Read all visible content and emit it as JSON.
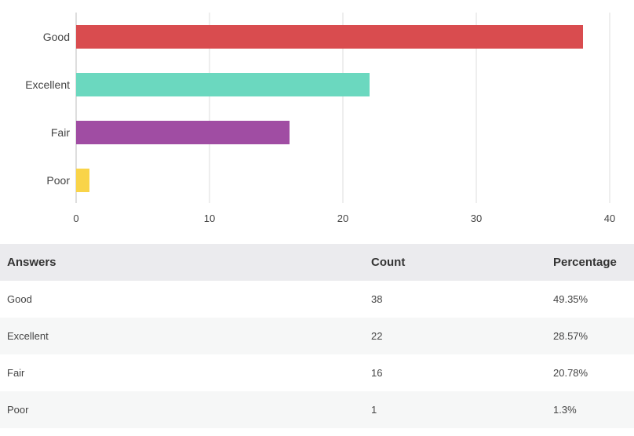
{
  "chart_data": {
    "type": "bar",
    "orientation": "horizontal",
    "categories": [
      "Good",
      "Excellent",
      "Fair",
      "Poor"
    ],
    "values": [
      38,
      22,
      16,
      1
    ],
    "colors": [
      "#d94c4f",
      "#6bd8bf",
      "#a04da3",
      "#f9d449"
    ],
    "xlim": [
      0,
      40
    ],
    "xticks": [
      0,
      10,
      20,
      30,
      40
    ],
    "grid": true,
    "title": "",
    "xlabel": "",
    "ylabel": ""
  },
  "table": {
    "headers": {
      "answers": "Answers",
      "count": "Count",
      "percentage": "Percentage"
    },
    "rows": [
      {
        "answer": "Good",
        "count": "38",
        "percentage": "49.35%"
      },
      {
        "answer": "Excellent",
        "count": "22",
        "percentage": "28.57%"
      },
      {
        "answer": "Fair",
        "count": "16",
        "percentage": "20.78%"
      },
      {
        "answer": "Poor",
        "count": "1",
        "percentage": "1.3%"
      }
    ]
  }
}
